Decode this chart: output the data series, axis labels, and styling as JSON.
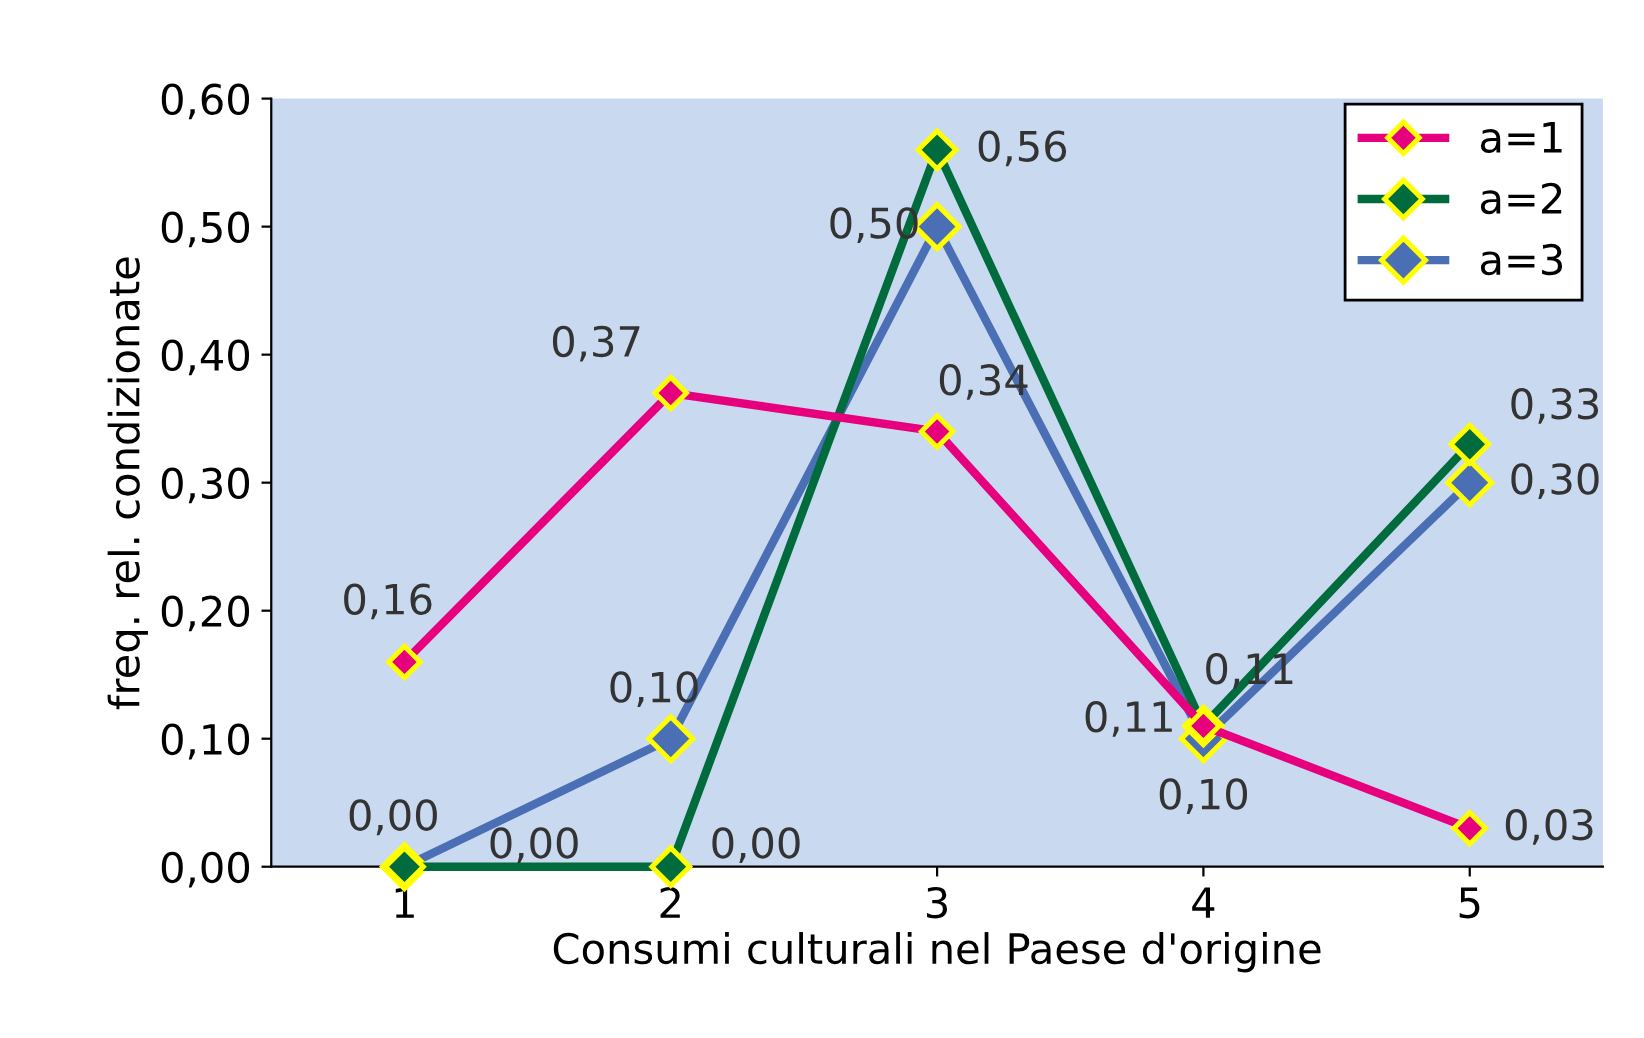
{
  "chart_data": {
    "type": "line",
    "xlabel": "Consumi culturali nel Paese d'origine",
    "ylabel": "freq. rel. condizionate",
    "categories": [
      "1",
      "2",
      "3",
      "4",
      "5"
    ],
    "series": [
      {
        "name": "a=1",
        "color": "#e6007e",
        "values": [
          0.16,
          0.37,
          0.34,
          0.11,
          0.03
        ],
        "value_labels": [
          "0,16",
          "0,37",
          "0,34",
          "0,11",
          "0,03"
        ]
      },
      {
        "name": "a=2",
        "color": "#006b3c",
        "values": [
          0.0,
          0.0,
          0.56,
          0.11,
          0.33
        ],
        "value_labels": [
          "0,00",
          "0,00",
          "0,56",
          "0,11",
          "0,33"
        ]
      },
      {
        "name": "a=3",
        "color": "#4a6fb5",
        "values": [
          0.0,
          0.1,
          0.5,
          0.1,
          0.3
        ],
        "value_labels": [
          "0,00",
          "0,10",
          "0,50",
          "0,10",
          "0,30"
        ]
      }
    ],
    "ylim": [
      0,
      0.6
    ],
    "yticks": [
      {
        "value": 0,
        "label": "0,00"
      },
      {
        "value": 0.1,
        "label": "0,10"
      },
      {
        "value": 0.2,
        "label": "0,20"
      },
      {
        "value": 0.3,
        "label": "0,30"
      },
      {
        "value": 0.4,
        "label": "0,40"
      },
      {
        "value": 0.5,
        "label": "0,50"
      },
      {
        "value": 0.6,
        "label": "0,60"
      }
    ],
    "marker": "diamond",
    "line_style": "solid",
    "legend": "top right",
    "grid": false
  }
}
